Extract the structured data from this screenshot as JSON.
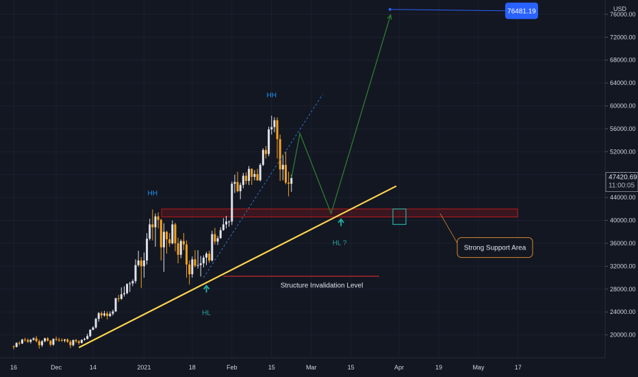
{
  "chart_data": {
    "type": "candlestick",
    "currency": "USD",
    "y_range": [
      16000,
      78500
    ],
    "y_ticks": [
      20000,
      24000,
      28000,
      32000,
      36000,
      40000,
      44000,
      48000,
      52000,
      56000,
      60000,
      64000,
      68000,
      72000,
      76000
    ],
    "y_tick_labels": [
      "20000.00",
      "24000.00",
      "28000.00",
      "32000.00",
      "36000.00",
      "40000.00",
      "44000.00",
      "48000.00",
      "52000.00",
      "56000.00",
      "60000.00",
      "64000.00",
      "68000.00",
      "72000.00",
      "76000.00"
    ],
    "x_tick_labels": [
      "16",
      "Dec",
      "14",
      "2021",
      "18",
      "Feb",
      "15",
      "Mar",
      "15",
      "Apr",
      "19",
      "May",
      "17"
    ],
    "x_tick_days": [
      0,
      15,
      28,
      46,
      63,
      77,
      91,
      105,
      119,
      136,
      150,
      164,
      178
    ],
    "last_price": "47420.69",
    "countdown": "11:00:05",
    "target_price": "76481.19",
    "candles": [
      [
        18000,
        18200,
        17500,
        17900
      ],
      [
        17900,
        18700,
        17800,
        18600
      ],
      [
        18600,
        18900,
        18200,
        18500
      ],
      [
        18500,
        19300,
        18400,
        19200
      ],
      [
        19200,
        19500,
        18800,
        19100
      ],
      [
        19100,
        19400,
        18600,
        18800
      ],
      [
        18800,
        19300,
        18500,
        19150
      ],
      [
        19150,
        19600,
        19000,
        19400
      ],
      [
        19400,
        19800,
        18700,
        18900
      ],
      [
        18900,
        19200,
        17600,
        18200
      ],
      [
        18200,
        19100,
        17900,
        18900
      ],
      [
        18900,
        19500,
        18700,
        19400
      ],
      [
        19400,
        19600,
        18800,
        19000
      ],
      [
        19000,
        19100,
        18000,
        18300
      ],
      [
        18300,
        19400,
        18100,
        19300
      ],
      [
        19300,
        19700,
        18900,
        19150
      ],
      [
        19150,
        19500,
        18800,
        19100
      ],
      [
        19100,
        19400,
        18800,
        19000
      ],
      [
        19000,
        19300,
        18700,
        19200
      ],
      [
        19200,
        19400,
        18600,
        18800
      ],
      [
        18800,
        19100,
        17700,
        18200
      ],
      [
        18200,
        19200,
        18000,
        19100
      ],
      [
        19100,
        19300,
        18600,
        18900
      ],
      [
        18900,
        19100,
        18300,
        18600
      ],
      [
        18600,
        19200,
        18500,
        19150
      ],
      [
        19150,
        19500,
        19000,
        19300
      ],
      [
        19300,
        20200,
        19200,
        19800
      ],
      [
        19800,
        21000,
        19600,
        20900
      ],
      [
        20900,
        21500,
        20800,
        21300
      ],
      [
        21300,
        23000,
        21100,
        22800
      ],
      [
        22800,
        24000,
        22300,
        23800
      ],
      [
        23800,
        24100,
        22900,
        23400
      ],
      [
        23400,
        24200,
        23200,
        23750
      ],
      [
        23750,
        24100,
        22700,
        23300
      ],
      [
        23300,
        24100,
        23100,
        23700
      ],
      [
        23700,
        24400,
        23400,
        24100
      ],
      [
        24100,
        26500,
        24000,
        26400
      ],
      [
        26400,
        27000,
        25800,
        26300
      ],
      [
        26300,
        28300,
        26100,
        27100
      ],
      [
        27100,
        28500,
        26700,
        27300
      ],
      [
        27300,
        29000,
        27100,
        28900
      ],
      [
        28900,
        29300,
        27500,
        29000
      ],
      [
        29000,
        29700,
        28500,
        29400
      ],
      [
        29400,
        33200,
        29000,
        32200
      ],
      [
        32200,
        34700,
        31900,
        33000
      ],
      [
        33000,
        33600,
        28200,
        32000
      ],
      [
        32000,
        34400,
        30000,
        33000
      ],
      [
        33000,
        37800,
        32300,
        36800
      ],
      [
        36800,
        40300,
        36500,
        39300
      ],
      [
        39300,
        41900,
        36500,
        38800
      ],
      [
        38800,
        41200,
        35400,
        40700
      ],
      [
        40700,
        41400,
        38600,
        40100
      ],
      [
        40100,
        40300,
        33000,
        35300
      ],
      [
        35300,
        39500,
        31000,
        38000
      ],
      [
        38000,
        38200,
        34200,
        36700
      ],
      [
        36700,
        37800,
        35400,
        36000
      ],
      [
        36000,
        40000,
        35800,
        39300
      ],
      [
        39300,
        39600,
        34600,
        36000
      ],
      [
        36000,
        37000,
        32500,
        34000
      ],
      [
        34000,
        36700,
        33400,
        36400
      ],
      [
        36400,
        37800,
        34800,
        35800
      ],
      [
        35800,
        36500,
        30000,
        32300
      ],
      [
        32300,
        33000,
        28800,
        30600
      ],
      [
        30600,
        33700,
        30000,
        33200
      ],
      [
        33200,
        34800,
        31800,
        32100
      ],
      [
        32100,
        34800,
        31600,
        32200
      ],
      [
        32200,
        33800,
        30200,
        32500
      ],
      [
        32500,
        33900,
        31800,
        33500
      ],
      [
        33500,
        34500,
        32200,
        34200
      ],
      [
        34200,
        34700,
        32600,
        33000
      ],
      [
        33000,
        38200,
        32800,
        37600
      ],
      [
        37600,
        38700,
        35800,
        36300
      ],
      [
        36300,
        37300,
        35700,
        36900
      ],
      [
        36900,
        38800,
        36800,
        38300
      ],
      [
        38300,
        40400,
        38200,
        39300
      ],
      [
        39300,
        40800,
        38600,
        39800
      ],
      [
        39800,
        40000,
        38900,
        39800
      ],
      [
        39800,
        46800,
        39200,
        46400
      ],
      [
        46400,
        48000,
        44800,
        46700
      ],
      [
        46700,
        48500,
        44900,
        45100
      ],
      [
        45100,
        46600,
        43700,
        46200
      ],
      [
        46200,
        48300,
        45600,
        47800
      ],
      [
        47800,
        48400,
        46300,
        46900
      ],
      [
        46900,
        49500,
        46200,
        49000
      ],
      [
        49000,
        49100,
        46200,
        47600
      ],
      [
        47600,
        48800,
        47000,
        48100
      ],
      [
        48100,
        49000,
        46900,
        47000
      ],
      [
        47000,
        50000,
        46800,
        49700
      ],
      [
        49700,
        52600,
        49500,
        52300
      ],
      [
        52300,
        53000,
        50800,
        51600
      ],
      [
        51600,
        56400,
        51200,
        55900
      ],
      [
        55900,
        58300,
        55000,
        56300
      ],
      [
        56300,
        58000,
        55400,
        57500
      ],
      [
        57500,
        58000,
        50800,
        54200
      ],
      [
        54200,
        55000,
        46900,
        48900
      ],
      [
        48900,
        51500,
        47000,
        49700
      ],
      [
        49700,
        52000,
        46300,
        46600
      ],
      [
        46600,
        48500,
        44200,
        46400
      ],
      [
        46400,
        48000,
        45000,
        47420
      ]
    ],
    "support_zone": [
      40600,
      42000
    ],
    "support_label": "Strong Support Area",
    "invalidation_level": 30250,
    "invalidation_label": "Structure Invalidation Level",
    "labels": [
      {
        "text": "HH",
        "day": 49,
        "price": 44400,
        "color": "#2196f3"
      },
      {
        "text": "HH",
        "day": 91,
        "price": 61500,
        "color": "#2196f3"
      },
      {
        "text": "HL",
        "day": 68,
        "price": 23500,
        "color": "#26a69a"
      },
      {
        "text": "HL ?",
        "day": 115,
        "price": 35700,
        "color": "#26a69a"
      }
    ],
    "trendline": [
      [
        23,
        17800
      ],
      [
        135,
        46000
      ]
    ],
    "dashed_channel": [
      [
        67,
        30000
      ],
      [
        109,
        62000
      ]
    ],
    "projection": [
      [
        98,
        47420
      ],
      [
        101,
        55200
      ],
      [
        112,
        41200
      ],
      [
        133,
        75900
      ]
    ]
  }
}
